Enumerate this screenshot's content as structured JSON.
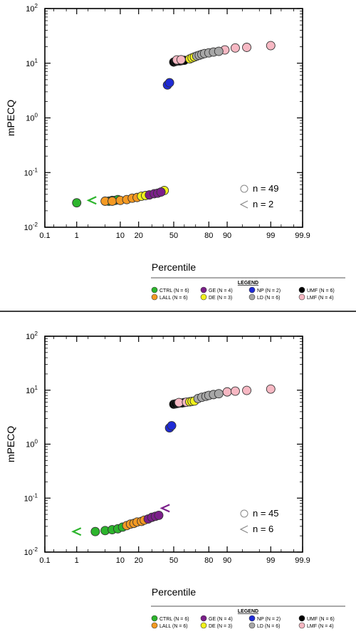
{
  "divider_color": "#000000",
  "colors": {
    "CTRL": "#2db52d",
    "LALL": "#f59a23",
    "GE": "#7b1f8a",
    "DE": "#f2f21c",
    "NP": "#1f2bd6",
    "LD": "#a7a7a7",
    "UMF": "#000000",
    "LMF": "#f7b8c3"
  },
  "chart_data": [
    {
      "type": "scatter",
      "x_scale": "probability",
      "y_scale": "log",
      "xlabel": "Percentile",
      "ylabel": "mPECQ",
      "x_ticks": [
        "0.1",
        "1",
        "10",
        "20",
        "50",
        "80",
        "90",
        "99",
        "99.9"
      ],
      "y_ticks": [
        "10^-2",
        "10^-1",
        "10^0",
        "10^1",
        "10^2"
      ],
      "xlim": [
        0.1,
        99.9
      ],
      "ylim": [
        0.01,
        100
      ],
      "grid": false,
      "annotations": {
        "detected": "n = 49",
        "nondetect": "n = 2"
      },
      "legend": {
        "title": "LEGEND",
        "placement": "bottom-right",
        "entries": [
          {
            "key": "CTRL",
            "label": "CTRL (N = 6)"
          },
          {
            "key": "GE",
            "label": "GE (N = 4)"
          },
          {
            "key": "NP",
            "label": "NP (N = 2)"
          },
          {
            "key": "UMF",
            "label": "UMF (N = 6)"
          },
          {
            "key": "LALL",
            "label": "LALL (N = 6)"
          },
          {
            "key": "DE",
            "label": "DE (N = 3)"
          },
          {
            "key": "LD",
            "label": "LD (N = 6)"
          },
          {
            "key": "LMF",
            "label": "LMF (N = 4)"
          }
        ]
      },
      "series": [
        {
          "key": "CTRL",
          "marker": "circle",
          "points": [
            [
              1,
              0.028
            ],
            [
              6,
              0.03
            ],
            [
              7,
              0.031
            ],
            [
              8,
              0.031
            ],
            [
              9,
              0.032
            ]
          ]
        },
        {
          "key": "CTRL",
          "marker": "less-than",
          "points": [
            [
              2.5,
              0.031
            ]
          ]
        },
        {
          "key": "LALL",
          "marker": "circle",
          "points": [
            [
              5,
              0.03
            ],
            [
              7,
              0.03
            ],
            [
              10,
              0.031
            ],
            [
              13,
              0.032
            ],
            [
              16,
              0.034
            ],
            [
              19,
              0.035
            ]
          ]
        },
        {
          "key": "DE",
          "marker": "circle",
          "points": [
            [
              22,
              0.037
            ],
            [
              25,
              0.038
            ],
            [
              41,
              0.047
            ]
          ]
        },
        {
          "key": "GE",
          "marker": "circle",
          "points": [
            [
              28,
              0.039
            ],
            [
              32,
              0.041
            ],
            [
              35,
              0.042
            ],
            [
              38,
              0.044
            ]
          ]
        },
        {
          "key": "NP",
          "marker": "circle",
          "points": [
            [
              44,
              4.0
            ],
            [
              46,
              4.4
            ]
          ]
        },
        {
          "key": "UMF",
          "marker": "circle",
          "points": [
            [
              50,
              10.5
            ],
            [
              52,
              10.8
            ],
            [
              54,
              11.0
            ],
            [
              56,
              11.0
            ],
            [
              58,
              11.2
            ],
            [
              60,
              11.3
            ]
          ]
        },
        {
          "key": "LMF",
          "marker": "circle",
          "points": [
            [
              53,
              11.5
            ],
            [
              57,
              11.6
            ],
            [
              89,
              17.5
            ],
            [
              93,
              19.0
            ],
            [
              96,
              19.5
            ],
            [
              99,
              21.0
            ]
          ]
        },
        {
          "key": "DE",
          "marker": "circle",
          "points": [
            [
              65,
              12.0
            ],
            [
              67,
              12.5
            ],
            [
              69,
              13.0
            ]
          ]
        },
        {
          "key": "LD",
          "marker": "circle",
          "points": [
            [
              71,
              13.5
            ],
            [
              73,
              14.0
            ],
            [
              75,
              14.5
            ],
            [
              77,
              15.0
            ],
            [
              80,
              15.5
            ],
            [
              83,
              16.0
            ],
            [
              86,
              16.5
            ]
          ]
        }
      ]
    },
    {
      "type": "scatter",
      "x_scale": "probability",
      "y_scale": "log",
      "xlabel": "Percentile",
      "ylabel": "mPECQ",
      "x_ticks": [
        "0.1",
        "1",
        "10",
        "20",
        "50",
        "80",
        "90",
        "99",
        "99.9"
      ],
      "y_ticks": [
        "10^-2",
        "10^-1",
        "10^0",
        "10^1",
        "10^2"
      ],
      "xlim": [
        0.1,
        99.9
      ],
      "ylim": [
        0.01,
        100
      ],
      "grid": false,
      "annotations": {
        "detected": "n = 45",
        "nondetect": "n = 6"
      },
      "legend": {
        "title": "LEGEND",
        "placement": "bottom-right",
        "entries": [
          {
            "key": "CTRL",
            "label": "CTRL (N = 6)"
          },
          {
            "key": "GE",
            "label": "GE (N = 4)"
          },
          {
            "key": "NP",
            "label": "NP (N = 2)"
          },
          {
            "key": "UMF",
            "label": "UMF (N = 6)"
          },
          {
            "key": "LALL",
            "label": "LALL (N = 6)"
          },
          {
            "key": "DE",
            "label": "DE (N = 3)"
          },
          {
            "key": "LD",
            "label": "LD (N = 6)"
          },
          {
            "key": "LMF",
            "label": "LMF (N = 4)"
          }
        ]
      },
      "series": [
        {
          "key": "CTRL",
          "marker": "circle",
          "points": [
            [
              3,
              0.024
            ],
            [
              5,
              0.025
            ],
            [
              7,
              0.026
            ],
            [
              9,
              0.027
            ],
            [
              11,
              0.029
            ]
          ]
        },
        {
          "key": "CTRL",
          "marker": "less-than",
          "points": [
            [
              1,
              0.024
            ]
          ]
        },
        {
          "key": "LALL",
          "marker": "circle",
          "points": [
            [
              13,
              0.031
            ],
            [
              15,
              0.033
            ],
            [
              17,
              0.034
            ],
            [
              19,
              0.036
            ],
            [
              22,
              0.037
            ],
            [
              24,
              0.039
            ]
          ]
        },
        {
          "key": "GE",
          "marker": "circle",
          "points": [
            [
              27,
              0.041
            ],
            [
              30,
              0.044
            ],
            [
              33,
              0.046
            ],
            [
              36,
              0.048
            ]
          ]
        },
        {
          "key": "GE",
          "marker": "less-than",
          "points": [
            [
              42,
              0.065
            ]
          ]
        },
        {
          "key": "NP",
          "marker": "circle",
          "points": [
            [
              46,
              2.0
            ],
            [
              48,
              2.2
            ]
          ]
        },
        {
          "key": "UMF",
          "marker": "circle",
          "points": [
            [
              50,
              5.5
            ],
            [
              52,
              5.6
            ],
            [
              54,
              5.7
            ],
            [
              56,
              5.8
            ],
            [
              58,
              5.8
            ],
            [
              60,
              5.9
            ]
          ]
        },
        {
          "key": "LMF",
          "marker": "circle",
          "points": [
            [
              55,
              5.9
            ],
            [
              62,
              6.0
            ],
            [
              90,
              9.3
            ],
            [
              93,
              9.6
            ],
            [
              96,
              9.9
            ],
            [
              99,
              10.5
            ]
          ]
        },
        {
          "key": "DE",
          "marker": "circle",
          "points": [
            [
              65,
              6.1
            ],
            [
              67,
              6.2
            ],
            [
              69,
              6.3
            ]
          ]
        },
        {
          "key": "LD",
          "marker": "circle",
          "points": [
            [
              72,
              7.0
            ],
            [
              75,
              7.4
            ],
            [
              78,
              7.7
            ],
            [
              80,
              8.0
            ],
            [
              83,
              8.3
            ],
            [
              86,
              8.6
            ]
          ]
        }
      ]
    }
  ]
}
